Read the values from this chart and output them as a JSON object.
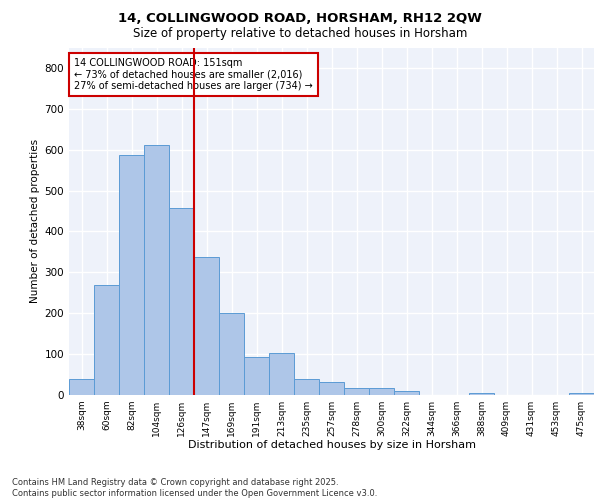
{
  "title1": "14, COLLINGWOOD ROAD, HORSHAM, RH12 2QW",
  "title2": "Size of property relative to detached houses in Horsham",
  "xlabel": "Distribution of detached houses by size in Horsham",
  "ylabel": "Number of detached properties",
  "bar_labels": [
    "38sqm",
    "60sqm",
    "82sqm",
    "104sqm",
    "126sqm",
    "147sqm",
    "169sqm",
    "191sqm",
    "213sqm",
    "235sqm",
    "257sqm",
    "278sqm",
    "300sqm",
    "322sqm",
    "344sqm",
    "366sqm",
    "388sqm",
    "409sqm",
    "431sqm",
    "453sqm",
    "475sqm"
  ],
  "bar_heights": [
    38,
    268,
    587,
    611,
    457,
    338,
    201,
    93,
    102,
    38,
    31,
    17,
    16,
    10,
    1,
    0,
    5,
    1,
    0,
    0,
    5
  ],
  "bar_color": "#aec6e8",
  "bar_edge_color": "#5b9bd5",
  "vline_color": "#cc0000",
  "annotation_title": "14 COLLINGWOOD ROAD: 151sqm",
  "annotation_line1": "← 73% of detached houses are smaller (2,016)",
  "annotation_line2": "27% of semi-detached houses are larger (734) →",
  "annotation_box_edgecolor": "#cc0000",
  "ylim": [
    0,
    850
  ],
  "yticks": [
    0,
    100,
    200,
    300,
    400,
    500,
    600,
    700,
    800
  ],
  "footer_line1": "Contains HM Land Registry data © Crown copyright and database right 2025.",
  "footer_line2": "Contains public sector information licensed under the Open Government Licence v3.0.",
  "bg_color": "#eef2fa",
  "grid_color": "#ffffff"
}
